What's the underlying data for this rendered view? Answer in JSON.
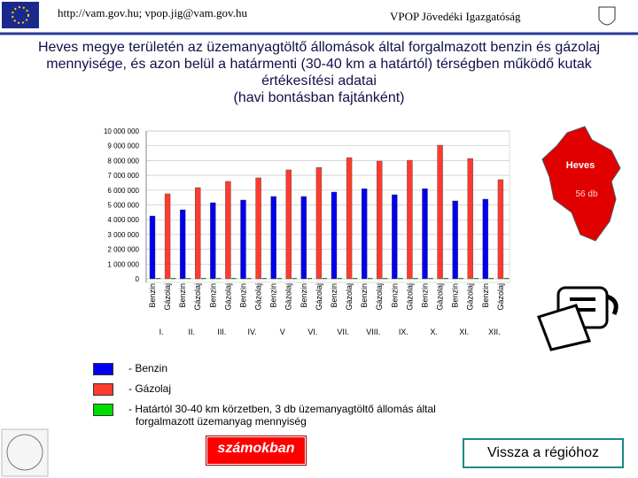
{
  "header": {
    "contact": "http://vam.gov.hu; vpop.jig@vam.gov.hu",
    "org": "VPOP Jövedéki Igazgatóság"
  },
  "chart_data": {
    "type": "bar",
    "title": [
      "Heves megye területén az üzemanyagtöltő állomások által forgalmazott benzin és gázolaj",
      "mennyisége, és azon belül a határmenti (30-40 km a határtól) térségben működő kutak",
      "értékesítési adatai",
      "(havi bontásban fajtánként)"
    ],
    "categories": [
      "Benzin",
      "Gázolaj",
      "Benzin",
      "Gázolaj",
      "Benzin",
      "Gázolaj",
      "Benzin",
      "Gázolaj",
      "Benzin",
      "Gázolaj",
      "Benzin",
      "Gázolaj",
      "Benzin",
      "Gázolaj",
      "Benzin",
      "Gázolaj",
      "Benzin",
      "Gázolaj",
      "Benzin",
      "Gázolaj",
      "Benzin",
      "Gázolaj",
      "Benzin",
      "Gázolaj"
    ],
    "groups": [
      "I.",
      "II.",
      "III.",
      "IV.",
      "V",
      "VI.",
      "VII.",
      "VIII.",
      "IX.",
      "X.",
      "XI.",
      "XII."
    ],
    "series": [
      {
        "name": "- Benzin",
        "color": "#0000ee",
        "values": [
          4250000,
          null,
          4670000,
          null,
          5150000,
          null,
          5330000,
          null,
          5570000,
          null,
          5570000,
          null,
          5870000,
          null,
          6100000,
          null,
          5690000,
          null,
          6100000,
          null,
          5270000,
          null,
          5390000,
          null
        ]
      },
      {
        "name": "- Gázolaj",
        "color": "#ff3b2f",
        "values": [
          null,
          5750000,
          null,
          6170000,
          null,
          6590000,
          null,
          6830000,
          null,
          7370000,
          null,
          7540000,
          null,
          8200000,
          null,
          7960000,
          null,
          8020000,
          null,
          9040000,
          null,
          8140000,
          null,
          6710000
        ]
      },
      {
        "name": "- Határtól 30-40 km körzetben, 3 db üzemanyagtöltő állomás által forgalmazott üzemanyag mennyiség",
        "color": "#00dd00",
        "values": [
          50000,
          50000,
          50000,
          50000,
          50000,
          50000,
          50000,
          50000,
          50000,
          50000,
          50000,
          50000,
          50000,
          50000,
          50000,
          50000,
          50000,
          50000,
          50000,
          50000,
          50000,
          50000,
          50000,
          50000
        ]
      }
    ],
    "ylim": [
      0,
      10000000
    ],
    "yticks": [
      0,
      {
        "value": 1000000,
        "label": "1 000 000"
      },
      {
        "value": 2000000,
        "label": "2 000 000"
      },
      {
        "value": 3000000,
        "label": "3 000 000"
      },
      {
        "value": 4000000,
        "label": "4 000 000"
      },
      {
        "value": 5000000,
        "label": "5 000 000"
      },
      {
        "value": 6000000,
        "label": "6 000 000"
      },
      {
        "value": 7000000,
        "label": "7 000 000"
      },
      {
        "value": 8000000,
        "label": "8 000 000"
      },
      {
        "value": 9000000,
        "label": "9 000 000"
      },
      {
        "value": 10000000,
        "label": "10 000 000"
      }
    ],
    "grid": true
  },
  "map": {
    "label": "Heves",
    "count": "56 db"
  },
  "buttons": {
    "numbers": "számokban",
    "back": "Vissza a régióhoz"
  }
}
